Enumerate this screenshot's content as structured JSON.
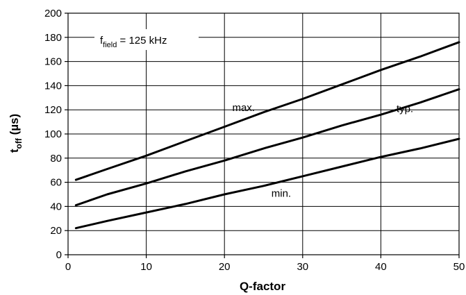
{
  "chart_data": {
    "type": "line",
    "xlabel": "Q-factor",
    "ylabel": {
      "main": "t",
      "sub": "off",
      "unit": " (µs)"
    },
    "xlim": [
      0,
      50
    ],
    "ylim": [
      0,
      200
    ],
    "x_ticks": [
      0,
      10,
      20,
      30,
      40,
      50
    ],
    "y_ticks": [
      0,
      20,
      40,
      60,
      80,
      100,
      120,
      140,
      160,
      180,
      200
    ],
    "grid": true,
    "legend": "none",
    "colors": {
      "line": "#000000",
      "grid": "#000000",
      "background": "#ffffff"
    },
    "annotation": {
      "main": "f",
      "sub": "field",
      "rest": " = 125 kHz"
    },
    "series": [
      {
        "name": "max.",
        "x": [
          1,
          5,
          10,
          15,
          20,
          25,
          30,
          35,
          40,
          45,
          50
        ],
        "values": [
          62,
          71,
          82,
          94,
          106,
          118,
          129,
          141,
          153,
          164,
          176
        ]
      },
      {
        "name": "typ.",
        "x": [
          1,
          5,
          10,
          15,
          20,
          25,
          30,
          35,
          40,
          45,
          50
        ],
        "values": [
          41,
          50,
          59,
          69,
          78,
          88,
          97,
          107,
          116,
          126,
          137
        ]
      },
      {
        "name": "min.",
        "x": [
          1,
          5,
          10,
          15,
          20,
          25,
          30,
          35,
          40,
          45,
          50
        ],
        "values": [
          22,
          28,
          35,
          42,
          50,
          57,
          65,
          73,
          81,
          88,
          96
        ]
      }
    ]
  }
}
